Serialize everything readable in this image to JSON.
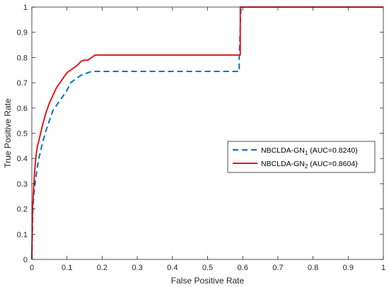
{
  "chart_data": {
    "type": "line",
    "title": "",
    "xlabel": "False Positive Rate",
    "ylabel": "True Positive Rate",
    "xlim": [
      0,
      1
    ],
    "ylim": [
      0,
      1
    ],
    "xticks": [
      "0",
      "0.1",
      "0.2",
      "0.3",
      "0.4",
      "0.5",
      "0.6",
      "0.7",
      "0.8",
      "0.9",
      "1"
    ],
    "yticks": [
      "0",
      "0.1",
      "0.2",
      "0.3",
      "0.4",
      "0.5",
      "0.6",
      "0.7",
      "0.8",
      "0.9",
      "1"
    ],
    "grid": false,
    "legend_position": "right",
    "series": [
      {
        "name": "NBCLDA-GN",
        "subscript": "1",
        "auc_text": " (AUC=0.8240)",
        "color": "#0072BD",
        "style": "dashed",
        "x": [
          0,
          0.003,
          0.006,
          0.01,
          0.015,
          0.02,
          0.03,
          0.04,
          0.05,
          0.06,
          0.07,
          0.08,
          0.09,
          0.1,
          0.11,
          0.12,
          0.13,
          0.14,
          0.15,
          0.16,
          0.17,
          0.18,
          0.2,
          0.3,
          0.4,
          0.5,
          0.59,
          0.59,
          0.595,
          0.6,
          0.7,
          0.8,
          0.9,
          1.0
        ],
        "y": [
          0,
          0.2,
          0.26,
          0.31,
          0.36,
          0.4,
          0.46,
          0.51,
          0.55,
          0.59,
          0.61,
          0.63,
          0.65,
          0.67,
          0.7,
          0.71,
          0.72,
          0.73,
          0.735,
          0.74,
          0.745,
          0.745,
          0.745,
          0.745,
          0.745,
          0.745,
          0.745,
          0.8,
          1.0,
          1.0,
          1.0,
          1.0,
          1.0,
          1.0
        ]
      },
      {
        "name": "NBCLDA-GN",
        "subscript": "2",
        "auc_text": " (AUC=0.8604)",
        "color": "#E41A1C",
        "style": "solid",
        "x": [
          0,
          0.002,
          0.005,
          0.008,
          0.012,
          0.016,
          0.02,
          0.025,
          0.03,
          0.04,
          0.05,
          0.06,
          0.07,
          0.08,
          0.09,
          0.1,
          0.11,
          0.12,
          0.13,
          0.14,
          0.15,
          0.16,
          0.17,
          0.18,
          0.2,
          0.3,
          0.4,
          0.5,
          0.593,
          0.593,
          0.6,
          0.7,
          0.8,
          0.9,
          1.0
        ],
        "y": [
          0,
          0.2,
          0.28,
          0.35,
          0.41,
          0.45,
          0.47,
          0.5,
          0.53,
          0.58,
          0.62,
          0.65,
          0.68,
          0.7,
          0.72,
          0.74,
          0.75,
          0.76,
          0.77,
          0.785,
          0.79,
          0.79,
          0.8,
          0.81,
          0.81,
          0.81,
          0.81,
          0.81,
          0.81,
          1.0,
          1.0,
          1.0,
          1.0,
          1.0,
          1.0
        ]
      }
    ]
  }
}
